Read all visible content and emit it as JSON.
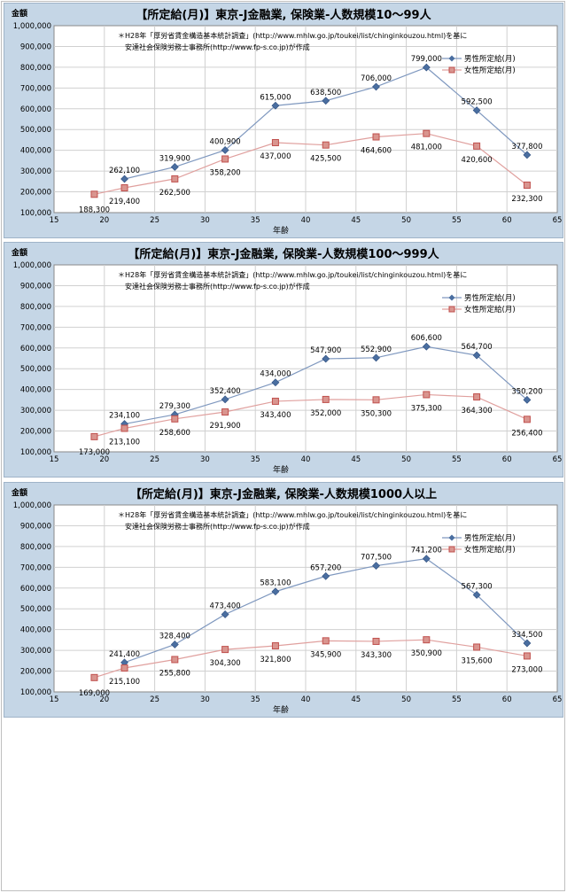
{
  "chart_data": [
    {
      "type": "line",
      "title": "【所定給(月)】東京-J金融業, 保険業-人数規模10～99人",
      "ylabel": "金額",
      "xlabel": "年齢",
      "note_line1": "＊H28年「厚労省賃金構造基本統計調査」(http://www.mhlw.go.jp/toukei/list/chinginkouzou.html)を基に",
      "note_line2": "安達社会保険労務士事務所(http://www.fp-s.co.jp)が作成",
      "xlim": [
        15,
        65
      ],
      "ylim": [
        100000,
        1000000
      ],
      "xticks": [
        "15",
        "20",
        "25",
        "30",
        "35",
        "40",
        "45",
        "50",
        "55",
        "60",
        "65"
      ],
      "yticks": [
        "100,000",
        "200,000",
        "300,000",
        "400,000",
        "500,000",
        "600,000",
        "700,000",
        "800,000",
        "900,000",
        "1,000,000"
      ],
      "grid": true,
      "legend": "top-right",
      "series": [
        {
          "name": "男性所定給(月)",
          "color": "#4a6ea0",
          "marker": "diamond",
          "x": [
            22,
            27,
            32,
            37,
            42,
            47,
            52,
            57,
            62
          ],
          "values": [
            262100,
            319900,
            400900,
            615000,
            638500,
            706000,
            799000,
            592500,
            377800
          ],
          "labels": [
            "262,100",
            "319,900",
            "400,900",
            "615,000",
            "638,500",
            "706,000",
            "799,000",
            "592,500",
            "377,800"
          ]
        },
        {
          "name": "女性所定給(月)",
          "color": "#c0504d",
          "marker": "square",
          "x": [
            19,
            22,
            27,
            32,
            37,
            42,
            47,
            52,
            57,
            62
          ],
          "values": [
            188300,
            219400,
            262500,
            358200,
            437000,
            425500,
            464600,
            481000,
            420600,
            232300
          ],
          "labels": [
            "188,300",
            "219,400",
            "262,500",
            "358,200",
            "437,000",
            "425,500",
            "464,600",
            "481,000",
            "420,600",
            "232,300"
          ]
        }
      ]
    },
    {
      "type": "line",
      "title": "【所定給(月)】東京-J金融業, 保険業-人数規模100～999人",
      "ylabel": "金額",
      "xlabel": "年齢",
      "note_line1": "＊H28年「厚労省賃金構造基本統計調査」(http://www.mhlw.go.jp/toukei/list/chinginkouzou.html)を基に",
      "note_line2": "安達社会保険労務士事務所(http://www.fp-s.co.jp)が作成",
      "xlim": [
        15,
        65
      ],
      "ylim": [
        100000,
        1000000
      ],
      "xticks": [
        "15",
        "20",
        "25",
        "30",
        "35",
        "40",
        "45",
        "50",
        "55",
        "60",
        "65"
      ],
      "yticks": [
        "100,000",
        "200,000",
        "300,000",
        "400,000",
        "500,000",
        "600,000",
        "700,000",
        "800,000",
        "900,000",
        "1,000,000"
      ],
      "grid": true,
      "legend": "top-right",
      "series": [
        {
          "name": "男性所定給(月)",
          "color": "#4a6ea0",
          "marker": "diamond",
          "x": [
            22,
            27,
            32,
            37,
            42,
            47,
            52,
            57,
            62
          ],
          "values": [
            234100,
            279300,
            352400,
            434000,
            547900,
            552900,
            606600,
            564700,
            350200
          ],
          "labels": [
            "234,100",
            "279,300",
            "352,400",
            "434,000",
            "547,900",
            "552,900",
            "606,600",
            "564,700",
            "350,200"
          ]
        },
        {
          "name": "女性所定給(月)",
          "color": "#c0504d",
          "marker": "square",
          "x": [
            19,
            22,
            27,
            32,
            37,
            42,
            47,
            52,
            57,
            62
          ],
          "values": [
            173000,
            213100,
            258600,
            291900,
            343400,
            352000,
            350300,
            375300,
            364300,
            256400
          ],
          "labels": [
            "173,000",
            "213,100",
            "258,600",
            "291,900",
            "343,400",
            "352,000",
            "350,300",
            "375,300",
            "364,300",
            "256,400"
          ]
        }
      ]
    },
    {
      "type": "line",
      "title": "【所定給(月)】東京-J金融業, 保険業-人数規模1000人以上",
      "ylabel": "金額",
      "xlabel": "年齢",
      "note_line1": "＊H28年「厚労省賃金構造基本統計調査」(http://www.mhlw.go.jp/toukei/list/chinginkouzou.html)を基に",
      "note_line2": "安達社会保険労務士事務所(http://www.fp-s.co.jp)が作成",
      "xlim": [
        15,
        65
      ],
      "ylim": [
        100000,
        1000000
      ],
      "xticks": [
        "15",
        "20",
        "25",
        "30",
        "35",
        "40",
        "45",
        "50",
        "55",
        "60",
        "65"
      ],
      "yticks": [
        "100,000",
        "200,000",
        "300,000",
        "400,000",
        "500,000",
        "600,000",
        "700,000",
        "800,000",
        "900,000",
        "1,000,000"
      ],
      "grid": true,
      "legend": "top-right",
      "series": [
        {
          "name": "男性所定給(月)",
          "color": "#4a6ea0",
          "marker": "diamond",
          "x": [
            22,
            27,
            32,
            37,
            42,
            47,
            52,
            57,
            62
          ],
          "values": [
            241400,
            328400,
            473400,
            583100,
            657200,
            707500,
            741200,
            567300,
            334500
          ],
          "labels": [
            "241,400",
            "328,400",
            "473,400",
            "583,100",
            "657,200",
            "707,500",
            "741,200",
            "567,300",
            "334,500"
          ]
        },
        {
          "name": "女性所定給(月)",
          "color": "#c0504d",
          "marker": "square",
          "x": [
            19,
            22,
            27,
            32,
            37,
            42,
            47,
            52,
            57,
            62
          ],
          "values": [
            169000,
            215100,
            255800,
            304300,
            321800,
            345900,
            343300,
            350900,
            315600,
            273000
          ],
          "labels": [
            "169,000",
            "215,100",
            "255,800",
            "304,300",
            "321,800",
            "345,900",
            "343,300",
            "350,900",
            "315,600",
            "273,000"
          ]
        }
      ]
    }
  ]
}
